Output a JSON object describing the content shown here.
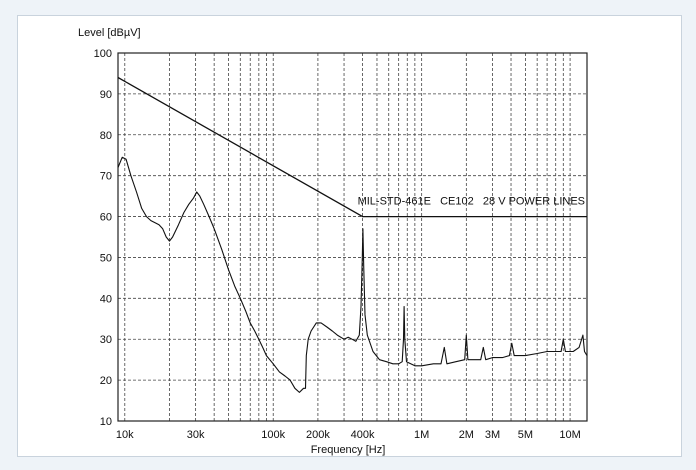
{
  "chart_data": {
    "type": "line",
    "title": "",
    "ylabel": "Level [dBµV]",
    "xlabel": "Frequency [Hz]",
    "x_scale": "log",
    "xlim": [
      9000,
      13000000
    ],
    "ylim": [
      10,
      100
    ],
    "grid": true,
    "y_ticks": [
      10,
      20,
      30,
      40,
      50,
      60,
      70,
      80,
      90,
      100
    ],
    "x_ticks": [
      {
        "value": 10000,
        "label": "10k"
      },
      {
        "value": 30000,
        "label": "30k"
      },
      {
        "value": 100000,
        "label": "100k"
      },
      {
        "value": 200000,
        "label": "200k"
      },
      {
        "value": 400000,
        "label": "400k"
      },
      {
        "value": 1000000,
        "label": "1M"
      },
      {
        "value": 2000000,
        "label": "2M"
      },
      {
        "value": 3000000,
        "label": "3M"
      },
      {
        "value": 5000000,
        "label": "5M"
      },
      {
        "value": 10000000,
        "label": "10M"
      }
    ],
    "annotation": "MIL-STD-461E   CE102   28 V POWER LINES",
    "series": [
      {
        "kind": "limit",
        "points": [
          [
            9000,
            94
          ],
          [
            400000,
            60
          ],
          [
            13000000,
            60
          ]
        ]
      },
      {
        "kind": "measured",
        "points": [
          [
            9000,
            72
          ],
          [
            9600,
            74.5
          ],
          [
            10200,
            74
          ],
          [
            11000,
            70
          ],
          [
            12000,
            66
          ],
          [
            13000,
            62
          ],
          [
            14000,
            60
          ],
          [
            15000,
            59
          ],
          [
            16000,
            58.5
          ],
          [
            17000,
            58
          ],
          [
            18000,
            57
          ],
          [
            19000,
            55
          ],
          [
            20000,
            54
          ],
          [
            21000,
            55
          ],
          [
            23000,
            58
          ],
          [
            25000,
            61
          ],
          [
            27000,
            63
          ],
          [
            29000,
            64.5
          ],
          [
            30500,
            66
          ],
          [
            32000,
            65
          ],
          [
            34000,
            63
          ],
          [
            37000,
            60
          ],
          [
            40000,
            57
          ],
          [
            45000,
            52
          ],
          [
            50000,
            47
          ],
          [
            55000,
            43
          ],
          [
            60000,
            40
          ],
          [
            65000,
            37
          ],
          [
            70000,
            34
          ],
          [
            75000,
            32
          ],
          [
            80000,
            30
          ],
          [
            85000,
            28
          ],
          [
            90000,
            26
          ],
          [
            100000,
            24
          ],
          [
            110000,
            22
          ],
          [
            120000,
            21
          ],
          [
            130000,
            20
          ],
          [
            140000,
            18
          ],
          [
            150000,
            17
          ],
          [
            160000,
            18
          ],
          [
            165000,
            18
          ],
          [
            167000,
            26
          ],
          [
            172000,
            30
          ],
          [
            180000,
            32
          ],
          [
            195000,
            34
          ],
          [
            210000,
            34
          ],
          [
            230000,
            33
          ],
          [
            250000,
            32
          ],
          [
            270000,
            31
          ],
          [
            300000,
            30
          ],
          [
            320000,
            30.5
          ],
          [
            340000,
            30
          ],
          [
            360000,
            29.5
          ],
          [
            380000,
            31
          ],
          [
            390000,
            38
          ],
          [
            398000,
            50
          ],
          [
            402000,
            57
          ],
          [
            407000,
            48
          ],
          [
            415000,
            36
          ],
          [
            430000,
            31
          ],
          [
            470000,
            27
          ],
          [
            520000,
            25
          ],
          [
            580000,
            24.5
          ],
          [
            640000,
            24
          ],
          [
            700000,
            24
          ],
          [
            740000,
            24.5
          ],
          [
            755000,
            30
          ],
          [
            762000,
            38
          ],
          [
            770000,
            30
          ],
          [
            790000,
            24.5
          ],
          [
            900000,
            23.5
          ],
          [
            1000000,
            23.5
          ],
          [
            1200000,
            24
          ],
          [
            1350000,
            24
          ],
          [
            1420000,
            28
          ],
          [
            1480000,
            24
          ],
          [
            1700000,
            24.5
          ],
          [
            1950000,
            25
          ],
          [
            2000000,
            31
          ],
          [
            2050000,
            25
          ],
          [
            2300000,
            25
          ],
          [
            2500000,
            25
          ],
          [
            2600000,
            28
          ],
          [
            2700000,
            25
          ],
          [
            3000000,
            25.5
          ],
          [
            3500000,
            25.5
          ],
          [
            3900000,
            26
          ],
          [
            4050000,
            29
          ],
          [
            4200000,
            26
          ],
          [
            5000000,
            26
          ],
          [
            6000000,
            26.5
          ],
          [
            7000000,
            27
          ],
          [
            8000000,
            27
          ],
          [
            8700000,
            27
          ],
          [
            9000000,
            30
          ],
          [
            9300000,
            27
          ],
          [
            10500000,
            27
          ],
          [
            11500000,
            28
          ],
          [
            12200000,
            31
          ],
          [
            12500000,
            27
          ],
          [
            13000000,
            26
          ]
        ]
      }
    ]
  }
}
